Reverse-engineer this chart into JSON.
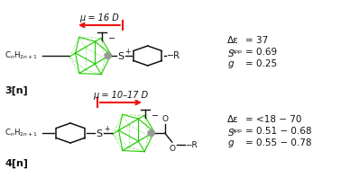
{
  "bg_color": "#ffffff",
  "struct1": {
    "label": "3[n]",
    "mu_label": "μ = 16 D",
    "arrow_dir": "left",
    "data": {
      "delta_eps": "= 37",
      "s_app": "= 0.69",
      "g": "= 0.25"
    }
  },
  "struct2": {
    "label": "4[n]",
    "mu_label": "μ = 10–17 D",
    "arrow_dir": "right",
    "data": {
      "delta_eps": "= <18 − 70",
      "s_app": "= 0.51 − 0.68",
      "g": "= 0.55 − 0.78"
    }
  },
  "green_color": "#22cc00",
  "red_color": "#ee1111",
  "black": "#111111",
  "gray_circle": "#999999"
}
